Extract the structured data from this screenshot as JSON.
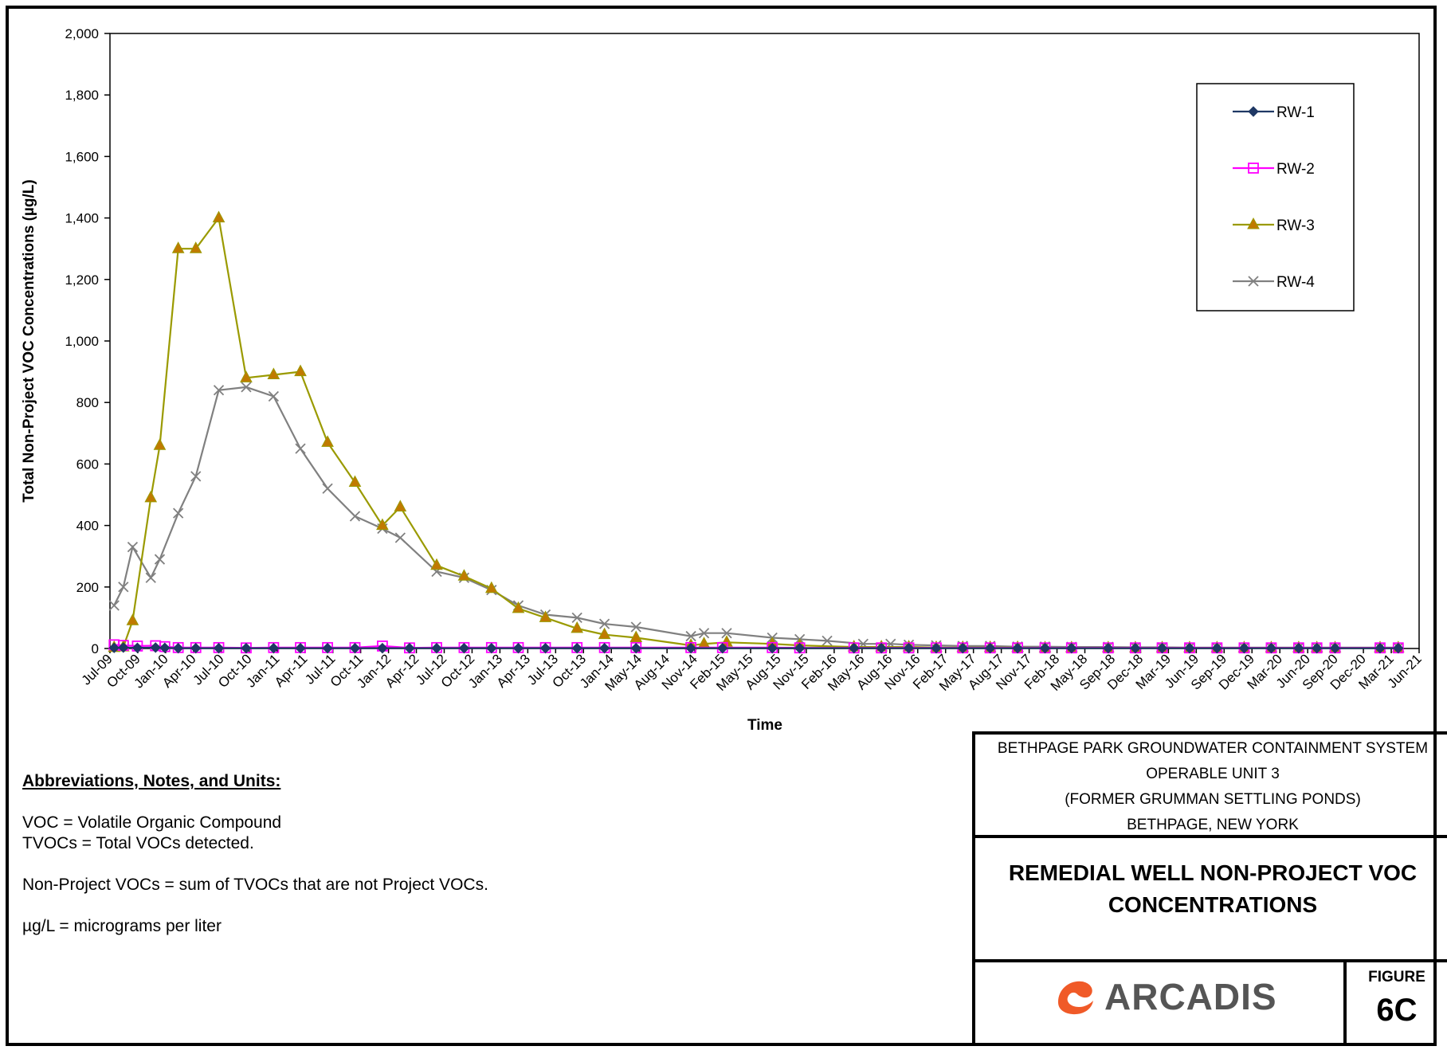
{
  "chart_data": {
    "type": "line",
    "xlabel": "Time",
    "ylabel": "Total Non-Project VOC Concentrations (µg/L)",
    "x_tick_labels": [
      "Jul-09",
      "Oct-09",
      "Jan-10",
      "Apr-10",
      "Jul-10",
      "Oct-10",
      "Jan-11",
      "Apr-11",
      "Jul-11",
      "Oct-11",
      "Jan-12",
      "Apr-12",
      "Jul-12",
      "Oct-12",
      "Jan-13",
      "Apr-13",
      "Jul-13",
      "Oct-13",
      "Jan-14",
      "May-14",
      "Aug-14",
      "Nov-14",
      "Feb-15",
      "May-15",
      "Aug-15",
      "Nov-15",
      "Feb-16",
      "May-16",
      "Aug-16",
      "Nov-16",
      "Feb-17",
      "May-17",
      "Aug-17",
      "Nov-17",
      "Feb-18",
      "May-18",
      "Sep-18",
      "Dec-18",
      "Mar-19",
      "Jun-19",
      "Sep-19",
      "Dec-19",
      "Mar-20",
      "Jun-20",
      "Sep-20",
      "Dec-20",
      "Mar-21",
      "Jun-21"
    ],
    "y_ticks": [
      "0",
      "200",
      "400",
      "600",
      "800",
      "1,000",
      "1,200",
      "1,400",
      "1,600",
      "1,800",
      "2,000"
    ],
    "ylim": [
      0,
      2000
    ],
    "xlim": [
      "2009-07-01",
      "2021-07-10"
    ],
    "legend_position": "top-right",
    "grid": false,
    "series": [
      {
        "name": "RW-1",
        "color": "#1f3864",
        "marker": "diamond",
        "points": [
          [
            "2009-07-15",
            2
          ],
          [
            "2009-08-15",
            3
          ],
          [
            "2009-10-01",
            2
          ],
          [
            "2009-12-01",
            3
          ],
          [
            "2010-01-01",
            2
          ],
          [
            "2010-02-15",
            1
          ],
          [
            "2010-04-15",
            1
          ],
          [
            "2010-07-01",
            1
          ],
          [
            "2010-10-01",
            1
          ],
          [
            "2011-01-01",
            1
          ],
          [
            "2011-04-01",
            1
          ],
          [
            "2011-07-01",
            1
          ],
          [
            "2011-10-01",
            1
          ],
          [
            "2012-01-01",
            1
          ],
          [
            "2012-04-01",
            1
          ],
          [
            "2012-07-01",
            1
          ],
          [
            "2012-10-01",
            1
          ],
          [
            "2013-01-01",
            1
          ],
          [
            "2013-04-01",
            1
          ],
          [
            "2013-07-01",
            1
          ],
          [
            "2013-10-15",
            1
          ],
          [
            "2014-01-15",
            1
          ],
          [
            "2014-05-01",
            1
          ],
          [
            "2014-11-01",
            1
          ],
          [
            "2015-02-15",
            1
          ],
          [
            "2015-08-01",
            1
          ],
          [
            "2015-11-01",
            1
          ],
          [
            "2016-05-01",
            1
          ],
          [
            "2016-08-01",
            1
          ],
          [
            "2016-11-01",
            1
          ],
          [
            "2017-02-01",
            1
          ],
          [
            "2017-05-01",
            1
          ],
          [
            "2017-08-01",
            1
          ],
          [
            "2017-11-01",
            1
          ],
          [
            "2018-02-01",
            1
          ],
          [
            "2018-05-01",
            1
          ],
          [
            "2018-09-01",
            1
          ],
          [
            "2018-12-01",
            1
          ],
          [
            "2019-03-01",
            1
          ],
          [
            "2019-06-01",
            1
          ],
          [
            "2019-09-01",
            1
          ],
          [
            "2019-12-01",
            1
          ],
          [
            "2020-03-01",
            1
          ],
          [
            "2020-06-01",
            1
          ],
          [
            "2020-08-01",
            1
          ],
          [
            "2020-10-01",
            1
          ],
          [
            "2021-03-01",
            1
          ],
          [
            "2021-05-01",
            1
          ]
        ]
      },
      {
        "name": "RW-2",
        "color": "#ff00ff",
        "marker": "square",
        "points": [
          [
            "2009-07-15",
            12
          ],
          [
            "2009-08-15",
            10
          ],
          [
            "2009-10-01",
            8
          ],
          [
            "2009-12-01",
            9
          ],
          [
            "2010-01-01",
            6
          ],
          [
            "2010-02-15",
            3
          ],
          [
            "2010-04-15",
            3
          ],
          [
            "2010-07-01",
            3
          ],
          [
            "2010-10-01",
            2
          ],
          [
            "2011-01-01",
            3
          ],
          [
            "2011-04-01",
            3
          ],
          [
            "2011-07-01",
            3
          ],
          [
            "2011-10-01",
            3
          ],
          [
            "2012-01-01",
            8
          ],
          [
            "2012-04-01",
            2
          ],
          [
            "2012-07-01",
            3
          ],
          [
            "2012-10-01",
            3
          ],
          [
            "2013-01-01",
            3
          ],
          [
            "2013-04-01",
            3
          ],
          [
            "2013-07-01",
            3
          ],
          [
            "2013-10-15",
            3
          ],
          [
            "2014-01-15",
            3
          ],
          [
            "2014-05-01",
            3
          ],
          [
            "2014-11-01",
            3
          ],
          [
            "2015-02-15",
            3
          ],
          [
            "2015-08-01",
            3
          ],
          [
            "2015-11-01",
            2
          ],
          [
            "2016-05-01",
            2
          ],
          [
            "2016-08-01",
            2
          ],
          [
            "2016-11-01",
            2
          ],
          [
            "2017-02-01",
            2
          ],
          [
            "2017-05-01",
            2
          ],
          [
            "2017-08-01",
            2
          ],
          [
            "2017-11-01",
            2
          ],
          [
            "2018-02-01",
            2
          ],
          [
            "2018-05-01",
            2
          ],
          [
            "2018-09-01",
            2
          ],
          [
            "2018-12-01",
            2
          ],
          [
            "2019-03-01",
            2
          ],
          [
            "2019-06-01",
            2
          ],
          [
            "2019-09-01",
            2
          ],
          [
            "2019-12-01",
            2
          ],
          [
            "2020-03-01",
            2
          ],
          [
            "2020-06-01",
            2
          ],
          [
            "2020-08-01",
            2
          ],
          [
            "2020-10-01",
            2
          ],
          [
            "2021-03-01",
            2
          ],
          [
            "2021-05-01",
            2
          ]
        ]
      },
      {
        "name": "RW-3",
        "color": "#9a9a00",
        "marker": "triangle",
        "marker_fill": "#c07a00",
        "points": [
          [
            "2009-07-15",
            3
          ],
          [
            "2009-08-15",
            5
          ],
          [
            "2009-09-15",
            90
          ],
          [
            "2009-11-15",
            490
          ],
          [
            "2009-12-15",
            660
          ],
          [
            "2010-02-15",
            1300
          ],
          [
            "2010-04-15",
            1300
          ],
          [
            "2010-07-01",
            1400
          ],
          [
            "2010-10-01",
            880
          ],
          [
            "2011-01-01",
            890
          ],
          [
            "2011-04-01",
            900
          ],
          [
            "2011-07-01",
            670
          ],
          [
            "2011-10-01",
            540
          ],
          [
            "2012-01-01",
            400
          ],
          [
            "2012-03-01",
            460
          ],
          [
            "2012-07-01",
            270
          ],
          [
            "2012-10-01",
            235
          ],
          [
            "2013-01-01",
            195
          ],
          [
            "2013-04-01",
            130
          ],
          [
            "2013-07-01",
            100
          ],
          [
            "2013-10-15",
            65
          ],
          [
            "2014-01-15",
            45
          ],
          [
            "2014-05-01",
            35
          ],
          [
            "2014-11-01",
            10
          ],
          [
            "2014-12-15",
            15
          ],
          [
            "2015-03-01",
            20
          ],
          [
            "2015-08-01",
            15
          ],
          [
            "2015-11-01",
            10
          ],
          [
            "2016-05-01",
            5
          ],
          [
            "2016-08-01",
            5
          ],
          [
            "2016-11-01",
            5
          ],
          [
            "2017-02-01",
            3
          ],
          [
            "2017-05-01",
            3
          ],
          [
            "2017-08-01",
            3
          ],
          [
            "2017-11-01",
            3
          ],
          [
            "2018-02-01",
            2
          ],
          [
            "2018-05-01",
            2
          ],
          [
            "2018-09-01",
            2
          ],
          [
            "2018-12-01",
            2
          ],
          [
            "2019-03-01",
            2
          ],
          [
            "2019-06-01",
            2
          ],
          [
            "2019-09-01",
            2
          ],
          [
            "2019-12-01",
            2
          ],
          [
            "2020-03-01",
            2
          ],
          [
            "2020-06-01",
            2
          ],
          [
            "2020-08-01",
            2
          ],
          [
            "2020-10-01",
            2
          ],
          [
            "2021-03-01",
            2
          ],
          [
            "2021-05-01",
            2
          ]
        ]
      },
      {
        "name": "RW-4",
        "color": "#808080",
        "marker": "x",
        "points": [
          [
            "2009-07-15",
            140
          ],
          [
            "2009-08-15",
            200
          ],
          [
            "2009-09-15",
            330
          ],
          [
            "2009-11-15",
            230
          ],
          [
            "2009-12-15",
            290
          ],
          [
            "2010-02-15",
            440
          ],
          [
            "2010-04-15",
            560
          ],
          [
            "2010-07-01",
            840
          ],
          [
            "2010-10-01",
            850
          ],
          [
            "2011-01-01",
            820
          ],
          [
            "2011-04-01",
            650
          ],
          [
            "2011-07-01",
            520
          ],
          [
            "2011-10-01",
            430
          ],
          [
            "2012-01-01",
            390
          ],
          [
            "2012-03-01",
            360
          ],
          [
            "2012-07-01",
            250
          ],
          [
            "2012-10-01",
            230
          ],
          [
            "2013-01-01",
            190
          ],
          [
            "2013-04-01",
            140
          ],
          [
            "2013-07-01",
            110
          ],
          [
            "2013-10-15",
            100
          ],
          [
            "2014-01-15",
            80
          ],
          [
            "2014-05-01",
            70
          ],
          [
            "2014-11-01",
            40
          ],
          [
            "2014-12-15",
            50
          ],
          [
            "2015-03-01",
            50
          ],
          [
            "2015-08-01",
            35
          ],
          [
            "2015-11-01",
            30
          ],
          [
            "2016-02-01",
            25
          ],
          [
            "2016-06-01",
            15
          ],
          [
            "2016-09-01",
            15
          ],
          [
            "2016-11-01",
            12
          ],
          [
            "2017-02-01",
            10
          ],
          [
            "2017-05-01",
            8
          ],
          [
            "2017-08-01",
            8
          ],
          [
            "2017-11-01",
            6
          ],
          [
            "2018-02-01",
            6
          ],
          [
            "2018-05-01",
            5
          ],
          [
            "2018-09-01",
            5
          ],
          [
            "2018-12-01",
            4
          ],
          [
            "2019-03-01",
            4
          ],
          [
            "2019-06-01",
            3
          ],
          [
            "2019-09-01",
            3
          ],
          [
            "2019-12-01",
            3
          ],
          [
            "2020-03-01",
            3
          ],
          [
            "2020-06-01",
            3
          ],
          [
            "2020-08-01",
            3
          ],
          [
            "2020-10-01",
            3
          ],
          [
            "2021-03-01",
            3
          ],
          [
            "2021-05-01",
            3
          ]
        ]
      }
    ]
  },
  "notes": {
    "header": "Abbreviations, Notes, and Units:",
    "line1": "VOC = Volatile Organic Compound",
    "line2": "TVOCs = Total VOCs detected.",
    "line3": "Non-Project VOCs = sum of TVOCs that are not Project VOCs.",
    "line4": "µg/L = micrograms per liter"
  },
  "title_block": {
    "line1": "BETHPAGE PARK GROUNDWATER CONTAINMENT SYSTEM",
    "line2": "OPERABLE UNIT 3",
    "line3": "(FORMER GRUMMAN SETTLING PONDS)",
    "line4": "BETHPAGE, NEW YORK",
    "title_line1": "REMEDIAL WELL NON-PROJECT VOC",
    "title_line2": "CONCENTRATIONS",
    "logo_text": "ARCADIS",
    "figure_label": "FIGURE",
    "figure_number": "6C",
    "logo_color": "#f05a28"
  }
}
